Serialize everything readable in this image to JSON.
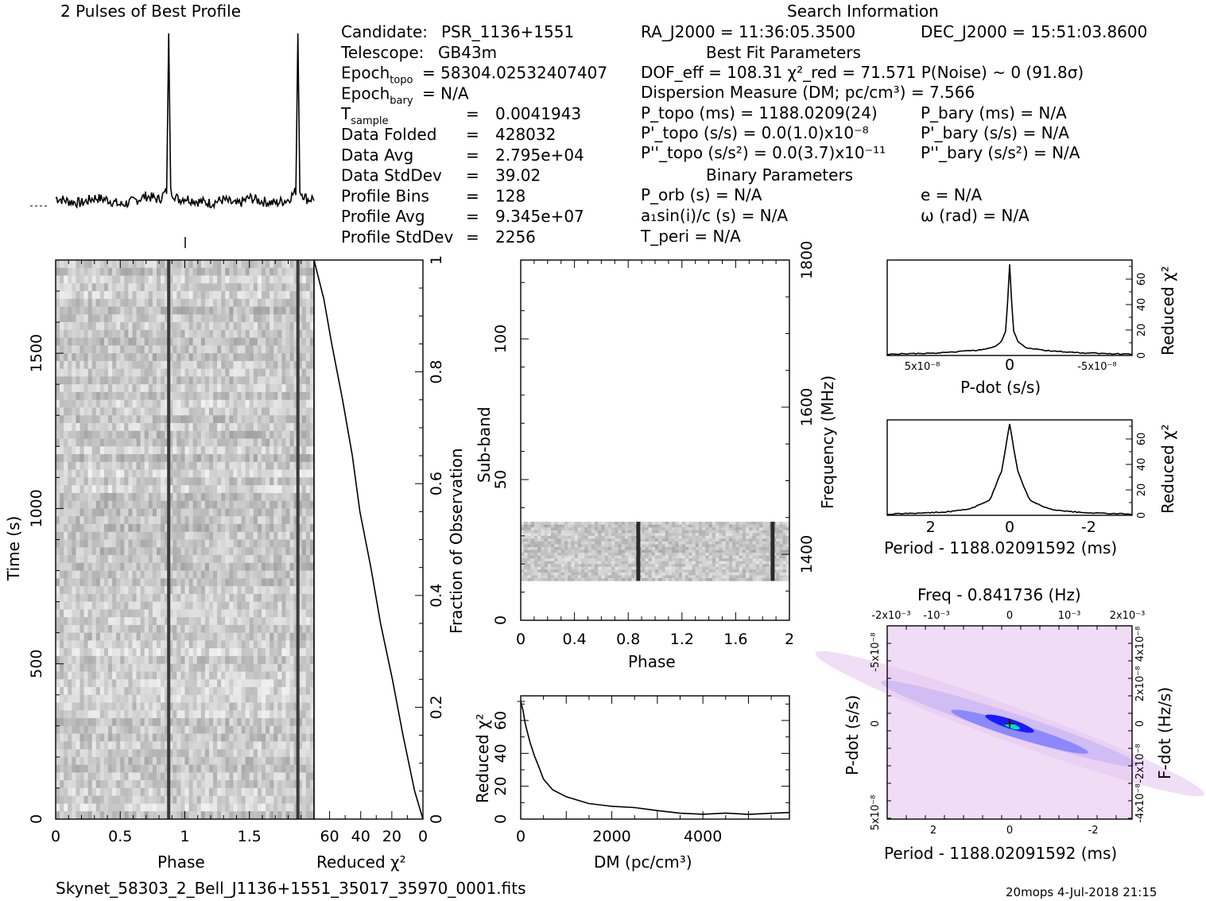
{
  "header": {
    "profile_title": "2 Pulses of Best Profile",
    "search_title": "Search Information",
    "best_fit_title": "Best Fit Parameters",
    "binary_title": "Binary Parameters"
  },
  "info_left": [
    {
      "label": "Candidate:",
      "value": "PSR_1136+1551"
    },
    {
      "label": "Telescope:",
      "value": "GB43m"
    },
    {
      "label": "Epoch",
      "sub": "topo",
      "value": "= 58304.02532407407"
    },
    {
      "label": "Epoch",
      "sub": "bary",
      "value": "= N/A"
    },
    {
      "label": "T",
      "sub": "sample",
      "value": "0.0041943"
    },
    {
      "label": "Data Folded",
      "value": "428032"
    },
    {
      "label": "Data Avg",
      "value": "2.795e+04"
    },
    {
      "label": "Data StdDev",
      "value": "39.02"
    },
    {
      "label": "Profile Bins",
      "value": "128"
    },
    {
      "label": "Profile Avg",
      "value": "9.345e+07"
    },
    {
      "label": "Profile StdDev",
      "value": "2256"
    }
  ],
  "info_middle": {
    "ra": "RA_J2000 = 11:36:05.3500",
    "dec": "DEC_J2000 = 15:51:03.8600",
    "dof": "DOF_eff = 108.31   χ²_red = 71.571   P(Noise) ~ 0    (91.8σ)",
    "dm": "Dispersion Measure (DM; pc/cm³) = 7.566",
    "p_topo": "P_topo (ms) =  1188.0209(24)",
    "pd_topo": "P'_topo (s/s) = 0.0(1.0)x10⁻⁸",
    "pdd_topo": "P''_topo (s/s²) = 0.0(3.7)x10⁻¹¹",
    "p_bary": "P_bary (ms) = N/A",
    "pd_bary": "P'_bary (s/s) = N/A",
    "pdd_bary": "P''_bary (s/s²) = N/A",
    "porb": "P_orb (s) = N/A",
    "a1sini": "a₁sin(i)/c (s) = N/A",
    "tperi": "T_peri = N/A",
    "e": "e = N/A",
    "omega": "ω (rad) = N/A"
  },
  "footer": {
    "filename": "Skynet_58303_2_Bell_J1136+1551_35017_35970_0001.fits",
    "stamp": "20mops   4-Jul-2018 21:15"
  },
  "labels": {
    "phase": "Phase",
    "time": "Time (s)",
    "reduced_chi2": "Reduced χ²",
    "fraction": "Fraction of Observation",
    "subband": "Sub-band",
    "frequency": "Frequency (MHz)",
    "dm_axis": "DM (pc/cm³)",
    "pdot": "P-dot (s/s)",
    "period": "Period - 1188.02091592 (ms)",
    "freq_top": "Freq - 0.841736 (Hz)",
    "fdot": "F-dot (Hz/s)"
  },
  "colors": {
    "ink": "#000000",
    "map_bg": "#f1dcf5",
    "map_core": "#1a1aff",
    "map_mid": "#7b7bff"
  },
  "chart_data": [
    {
      "type": "line",
      "name": "profile",
      "x": [
        0,
        0.1,
        0.2,
        0.3,
        0.4,
        0.5,
        0.6,
        0.7,
        0.8,
        0.86,
        0.875,
        0.89,
        0.95,
        1.0,
        1.1,
        1.2,
        1.3,
        1.4,
        1.5,
        1.6,
        1.7,
        1.8,
        1.86,
        1.875,
        1.89,
        1.95,
        2.0
      ],
      "y": [
        0.06,
        0.04,
        0.03,
        0.06,
        0.05,
        0.02,
        0.04,
        0.07,
        0.05,
        0.1,
        1.0,
        0.1,
        0.05,
        0.06,
        0.04,
        0.03,
        0.05,
        0.02,
        0.06,
        0.04,
        0.03,
        0.05,
        0.1,
        1.0,
        0.1,
        0.05,
        0.06
      ],
      "xlim": [
        0,
        2
      ]
    },
    {
      "type": "heatmap",
      "name": "time-phase",
      "xlabel": "Phase",
      "ylabel": "Time (s)",
      "xlim": [
        0,
        2
      ],
      "ylim": [
        0,
        1800
      ],
      "pulse_phases": [
        0.875,
        1.875
      ],
      "xticks": [
        "0",
        "0.5",
        "1",
        "1.5"
      ],
      "yticks": [
        "0",
        "500",
        "1000",
        "1500"
      ]
    },
    {
      "type": "line",
      "name": "chi2-vs-fraction",
      "xlabel": "Reduced χ²",
      "ylabel": "Fraction of Observation",
      "xlim": [
        70,
        0
      ],
      "ylim": [
        0,
        1
      ],
      "x": [
        0,
        5,
        12,
        20,
        28,
        34,
        40,
        46,
        52,
        58,
        64,
        70
      ],
      "y": [
        0,
        0.05,
        0.15,
        0.25,
        0.35,
        0.45,
        0.55,
        0.65,
        0.75,
        0.85,
        0.93,
        1.0
      ],
      "xticks": [
        "60",
        "40",
        "20",
        "0"
      ],
      "yticks": [
        "0",
        "0.2",
        "0.4",
        "0.6",
        "0.8",
        "1"
      ]
    },
    {
      "type": "heatmap",
      "name": "subband-phase",
      "xlabel": "Phase",
      "ylabel": "Sub-band",
      "y2label": "Frequency (MHz)",
      "xlim": [
        0,
        2
      ],
      "ylim": [
        0,
        128
      ],
      "filled_subbands": [
        14,
        35
      ],
      "pulse_phases": [
        0.875,
        1.875
      ],
      "xticks": [
        "0",
        "0.4",
        "0.8",
        "1.2",
        "1.6",
        "2"
      ],
      "yticks": [
        "0",
        "50",
        "100"
      ],
      "y2ticks": [
        "1400",
        "1600",
        "1800"
      ]
    },
    {
      "type": "line",
      "name": "dm-curve",
      "xlabel": "DM (pc/cm³)",
      "ylabel": "Reduced χ²",
      "xlim": [
        0,
        5900
      ],
      "ylim": [
        0,
        75
      ],
      "x": [
        0,
        50,
        100,
        200,
        300,
        400,
        500,
        700,
        1000,
        1500,
        2000,
        2500,
        3000,
        3500,
        4000,
        4500,
        5000,
        5500,
        5900
      ],
      "y": [
        71.6,
        66,
        58,
        47,
        38,
        31,
        25,
        18,
        13,
        10,
        8,
        7,
        5,
        4,
        3.5,
        3,
        3,
        4,
        4
      ],
      "xticks": [
        "0",
        "2000",
        "4000"
      ],
      "yticks": [
        "0",
        "20",
        "40",
        "60"
      ]
    },
    {
      "type": "line",
      "name": "pdot-curve",
      "xlabel": "P-dot (s/s)",
      "ylabel": "Reduced χ²",
      "x": [
        -7e-08,
        -4e-08,
        -2e-08,
        -1e-08,
        -5e-09,
        -2e-09,
        0,
        2e-09,
        5e-09,
        1e-08,
        2e-08,
        4e-08,
        7e-08
      ],
      "y": [
        1,
        2,
        4,
        6,
        10,
        20,
        71.6,
        20,
        10,
        6,
        4,
        2,
        1
      ],
      "xticks": [
        "5x10⁻⁸",
        "0",
        "-5x10⁻⁸"
      ],
      "yticks": [
        "0",
        "20",
        "40",
        "60"
      ]
    },
    {
      "type": "line",
      "name": "period-curve",
      "xlabel": "Period - 1188.02091592 (ms)",
      "ylabel": "Reduced χ²",
      "x": [
        -3,
        -2,
        -1.5,
        -1,
        -0.5,
        -0.2,
        0,
        0.2,
        0.5,
        1,
        1.5,
        2,
        3
      ],
      "y": [
        1,
        2,
        3,
        5,
        12,
        35,
        71.6,
        35,
        12,
        5,
        3,
        2,
        1
      ],
      "xticks": [
        "2",
        "0",
        "-2"
      ],
      "yticks": [
        "0",
        "20",
        "40",
        "60"
      ]
    },
    {
      "type": "heatmap",
      "name": "p-pdot-plane",
      "xlabel": "Period - 1188.02091592 (ms)",
      "ylabel": "P-dot (s/s)",
      "x2label": "Freq - 0.841736 (Hz)",
      "y2label": "F-dot (Hz/s)",
      "xticks": [
        "2",
        "0",
        "-2"
      ],
      "yticks": [
        "5x10⁻⁸",
        "0",
        "-5x10⁻⁸"
      ],
      "x2ticks": [
        "-2x10⁻³",
        "-10⁻³",
        "0",
        "10⁻³",
        "2x10⁻³"
      ],
      "y2ticks": [
        "-4x10⁻⁸",
        "-2x10⁻⁸",
        "0",
        "2x10⁻⁸",
        "4x10⁻⁸"
      ]
    }
  ]
}
